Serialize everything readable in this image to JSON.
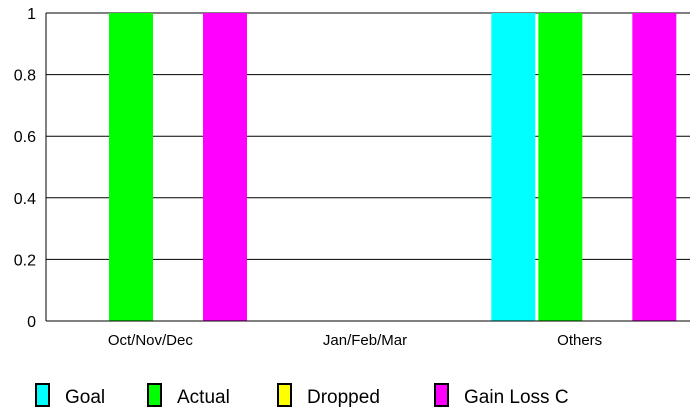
{
  "chart_data": {
    "type": "bar",
    "categories": [
      "Oct/Nov/Dec",
      "Jan/Feb/Mar",
      "Others"
    ],
    "series": [
      {
        "name": "Goal",
        "color": "#00ffff",
        "values": [
          0,
          0,
          1
        ]
      },
      {
        "name": "Actual",
        "color": "#00ff00",
        "values": [
          1,
          0,
          1
        ]
      },
      {
        "name": "Dropped",
        "color": "#ffff00",
        "values": [
          0,
          0,
          0
        ]
      },
      {
        "name": "Gain Loss C",
        "color": "#ff00ff",
        "values": [
          1,
          0,
          1
        ]
      }
    ],
    "ylim": [
      0,
      1
    ],
    "yticks": [
      "0",
      "0.2",
      "0.4",
      "0.6",
      "0.8",
      "1"
    ],
    "grid": true,
    "legend_position": "bottom"
  }
}
